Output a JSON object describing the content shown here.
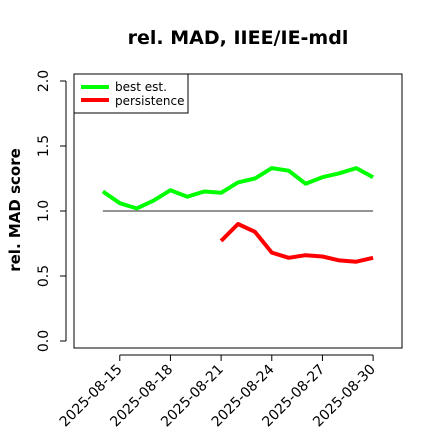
{
  "chart_data": {
    "type": "line",
    "title": "rel. MAD, IIEE/IE-mdl",
    "xlabel": "",
    "ylabel": "rel. MAD score",
    "ylim": [
      0,
      2
    ],
    "y_ticks": [
      "0.0",
      "0.5",
      "1.0",
      "1.5",
      "2.0"
    ],
    "x_range": [
      "2025-08-13",
      "2025-08-31"
    ],
    "x_ticks": [
      "2025-08-15",
      "2025-08-18",
      "2025-08-21",
      "2025-08-24",
      "2025-08-27",
      "2025-08-30"
    ],
    "reference_line": 1.0,
    "legend_position": "top-left",
    "series": [
      {
        "name": "best est.",
        "color": "#00ff00",
        "points": [
          [
            "2025-08-14",
            1.15
          ],
          [
            "2025-08-15",
            1.06
          ],
          [
            "2025-08-16",
            1.02
          ],
          [
            "2025-08-17",
            1.08
          ],
          [
            "2025-08-18",
            1.16
          ],
          [
            "2025-08-19",
            1.11
          ],
          [
            "2025-08-20",
            1.15
          ],
          [
            "2025-08-21",
            1.14
          ],
          [
            "2025-08-22",
            1.22
          ],
          [
            "2025-08-23",
            1.25
          ],
          [
            "2025-08-24",
            1.33
          ],
          [
            "2025-08-25",
            1.31
          ],
          [
            "2025-08-26",
            1.21
          ],
          [
            "2025-08-27",
            1.26
          ],
          [
            "2025-08-28",
            1.29
          ],
          [
            "2025-08-29",
            1.33
          ],
          [
            "2025-08-30",
            1.26
          ]
        ]
      },
      {
        "name": "persistence",
        "color": "#ff0000",
        "points": [
          [
            "2025-08-21",
            0.77
          ],
          [
            "2025-08-22",
            0.9
          ],
          [
            "2025-08-23",
            0.84
          ],
          [
            "2025-08-24",
            0.68
          ],
          [
            "2025-08-25",
            0.64
          ],
          [
            "2025-08-26",
            0.66
          ],
          [
            "2025-08-27",
            0.65
          ],
          [
            "2025-08-28",
            0.62
          ],
          [
            "2025-08-29",
            0.61
          ],
          [
            "2025-08-30",
            0.64
          ]
        ]
      }
    ]
  }
}
